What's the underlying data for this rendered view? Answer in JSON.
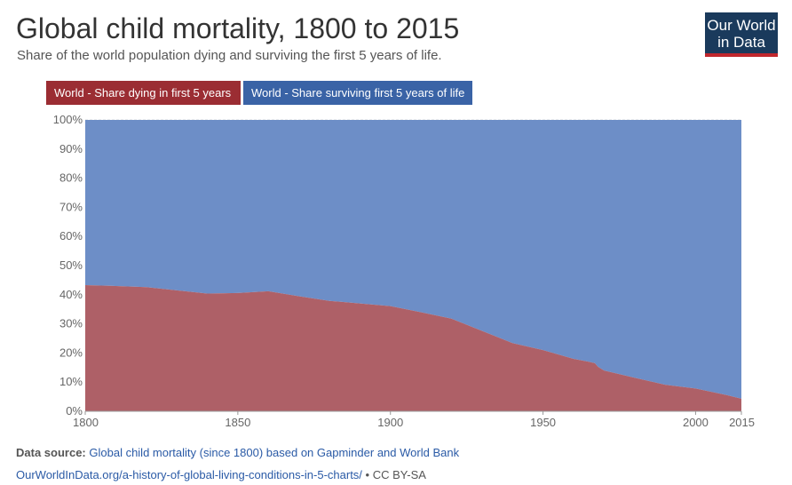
{
  "header": {
    "title": "Global child mortality, 1800 to 2015",
    "subtitle": "Share of the world population dying and surviving the first 5 years of life."
  },
  "logo": {
    "line1": "Our World",
    "line2": "in Data"
  },
  "legend": {
    "dying": "World - Share dying in first 5 years",
    "surviving": "World - Share surviving first 5 years of life"
  },
  "footer": {
    "source_label": "Data source:",
    "source_text": "Global child mortality (since 1800) based on Gapminder and World Bank",
    "url": "OurWorldInData.org/a-history-of-global-living-conditions-in-5-charts/",
    "license": "• CC BY-SA"
  },
  "colors": {
    "dying": "#ae6067",
    "surviving": "#6d8ec7",
    "legend_dying": "#9b2d33",
    "legend_surviving": "#3a63a6"
  },
  "chart_data": {
    "type": "area",
    "stacked": true,
    "xlim": [
      1800,
      2015
    ],
    "ylim": [
      0,
      100
    ],
    "x_ticks": [
      "1800",
      "1850",
      "1900",
      "1950",
      "2000",
      "2015"
    ],
    "x_tick_values": [
      1800,
      1850,
      1900,
      1950,
      2000,
      2015
    ],
    "y_ticks": [
      "0%",
      "10%",
      "20%",
      "30%",
      "40%",
      "50%",
      "60%",
      "70%",
      "80%",
      "90%",
      "100%"
    ],
    "y_tick_values": [
      0,
      10,
      20,
      30,
      40,
      50,
      60,
      70,
      80,
      90,
      100
    ],
    "grid": true,
    "legend_position": "top-left",
    "series": [
      {
        "name": "World - Share dying in first 5 years",
        "x": [
          1800,
          1810,
          1820,
          1830,
          1840,
          1850,
          1860,
          1870,
          1880,
          1890,
          1900,
          1910,
          1920,
          1930,
          1940,
          1950,
          1960,
          1965,
          1967,
          1968,
          1970,
          1980,
          1990,
          2000,
          2010,
          2015
        ],
        "values": [
          43.3,
          43.0,
          42.6,
          41.5,
          40.4,
          40.6,
          41.2,
          39.5,
          37.9,
          37.0,
          36.1,
          34.0,
          31.8,
          27.6,
          23.4,
          21.0,
          18.0,
          17.0,
          16.5,
          15.3,
          14.0,
          11.5,
          9.1,
          7.8,
          5.6,
          4.3
        ]
      },
      {
        "name": "World - Share surviving first 5 years of life",
        "x": [
          1800,
          1810,
          1820,
          1830,
          1840,
          1850,
          1860,
          1870,
          1880,
          1890,
          1900,
          1910,
          1920,
          1930,
          1940,
          1950,
          1960,
          1965,
          1967,
          1968,
          1970,
          1980,
          1990,
          2000,
          2010,
          2015
        ],
        "values": [
          56.7,
          57.0,
          57.4,
          58.5,
          59.6,
          59.4,
          58.8,
          60.5,
          62.1,
          63.0,
          63.9,
          66.0,
          68.2,
          72.4,
          76.6,
          79.0,
          82.0,
          83.0,
          83.5,
          84.7,
          86.0,
          88.5,
          90.9,
          92.2,
          94.4,
          95.7
        ]
      }
    ]
  }
}
